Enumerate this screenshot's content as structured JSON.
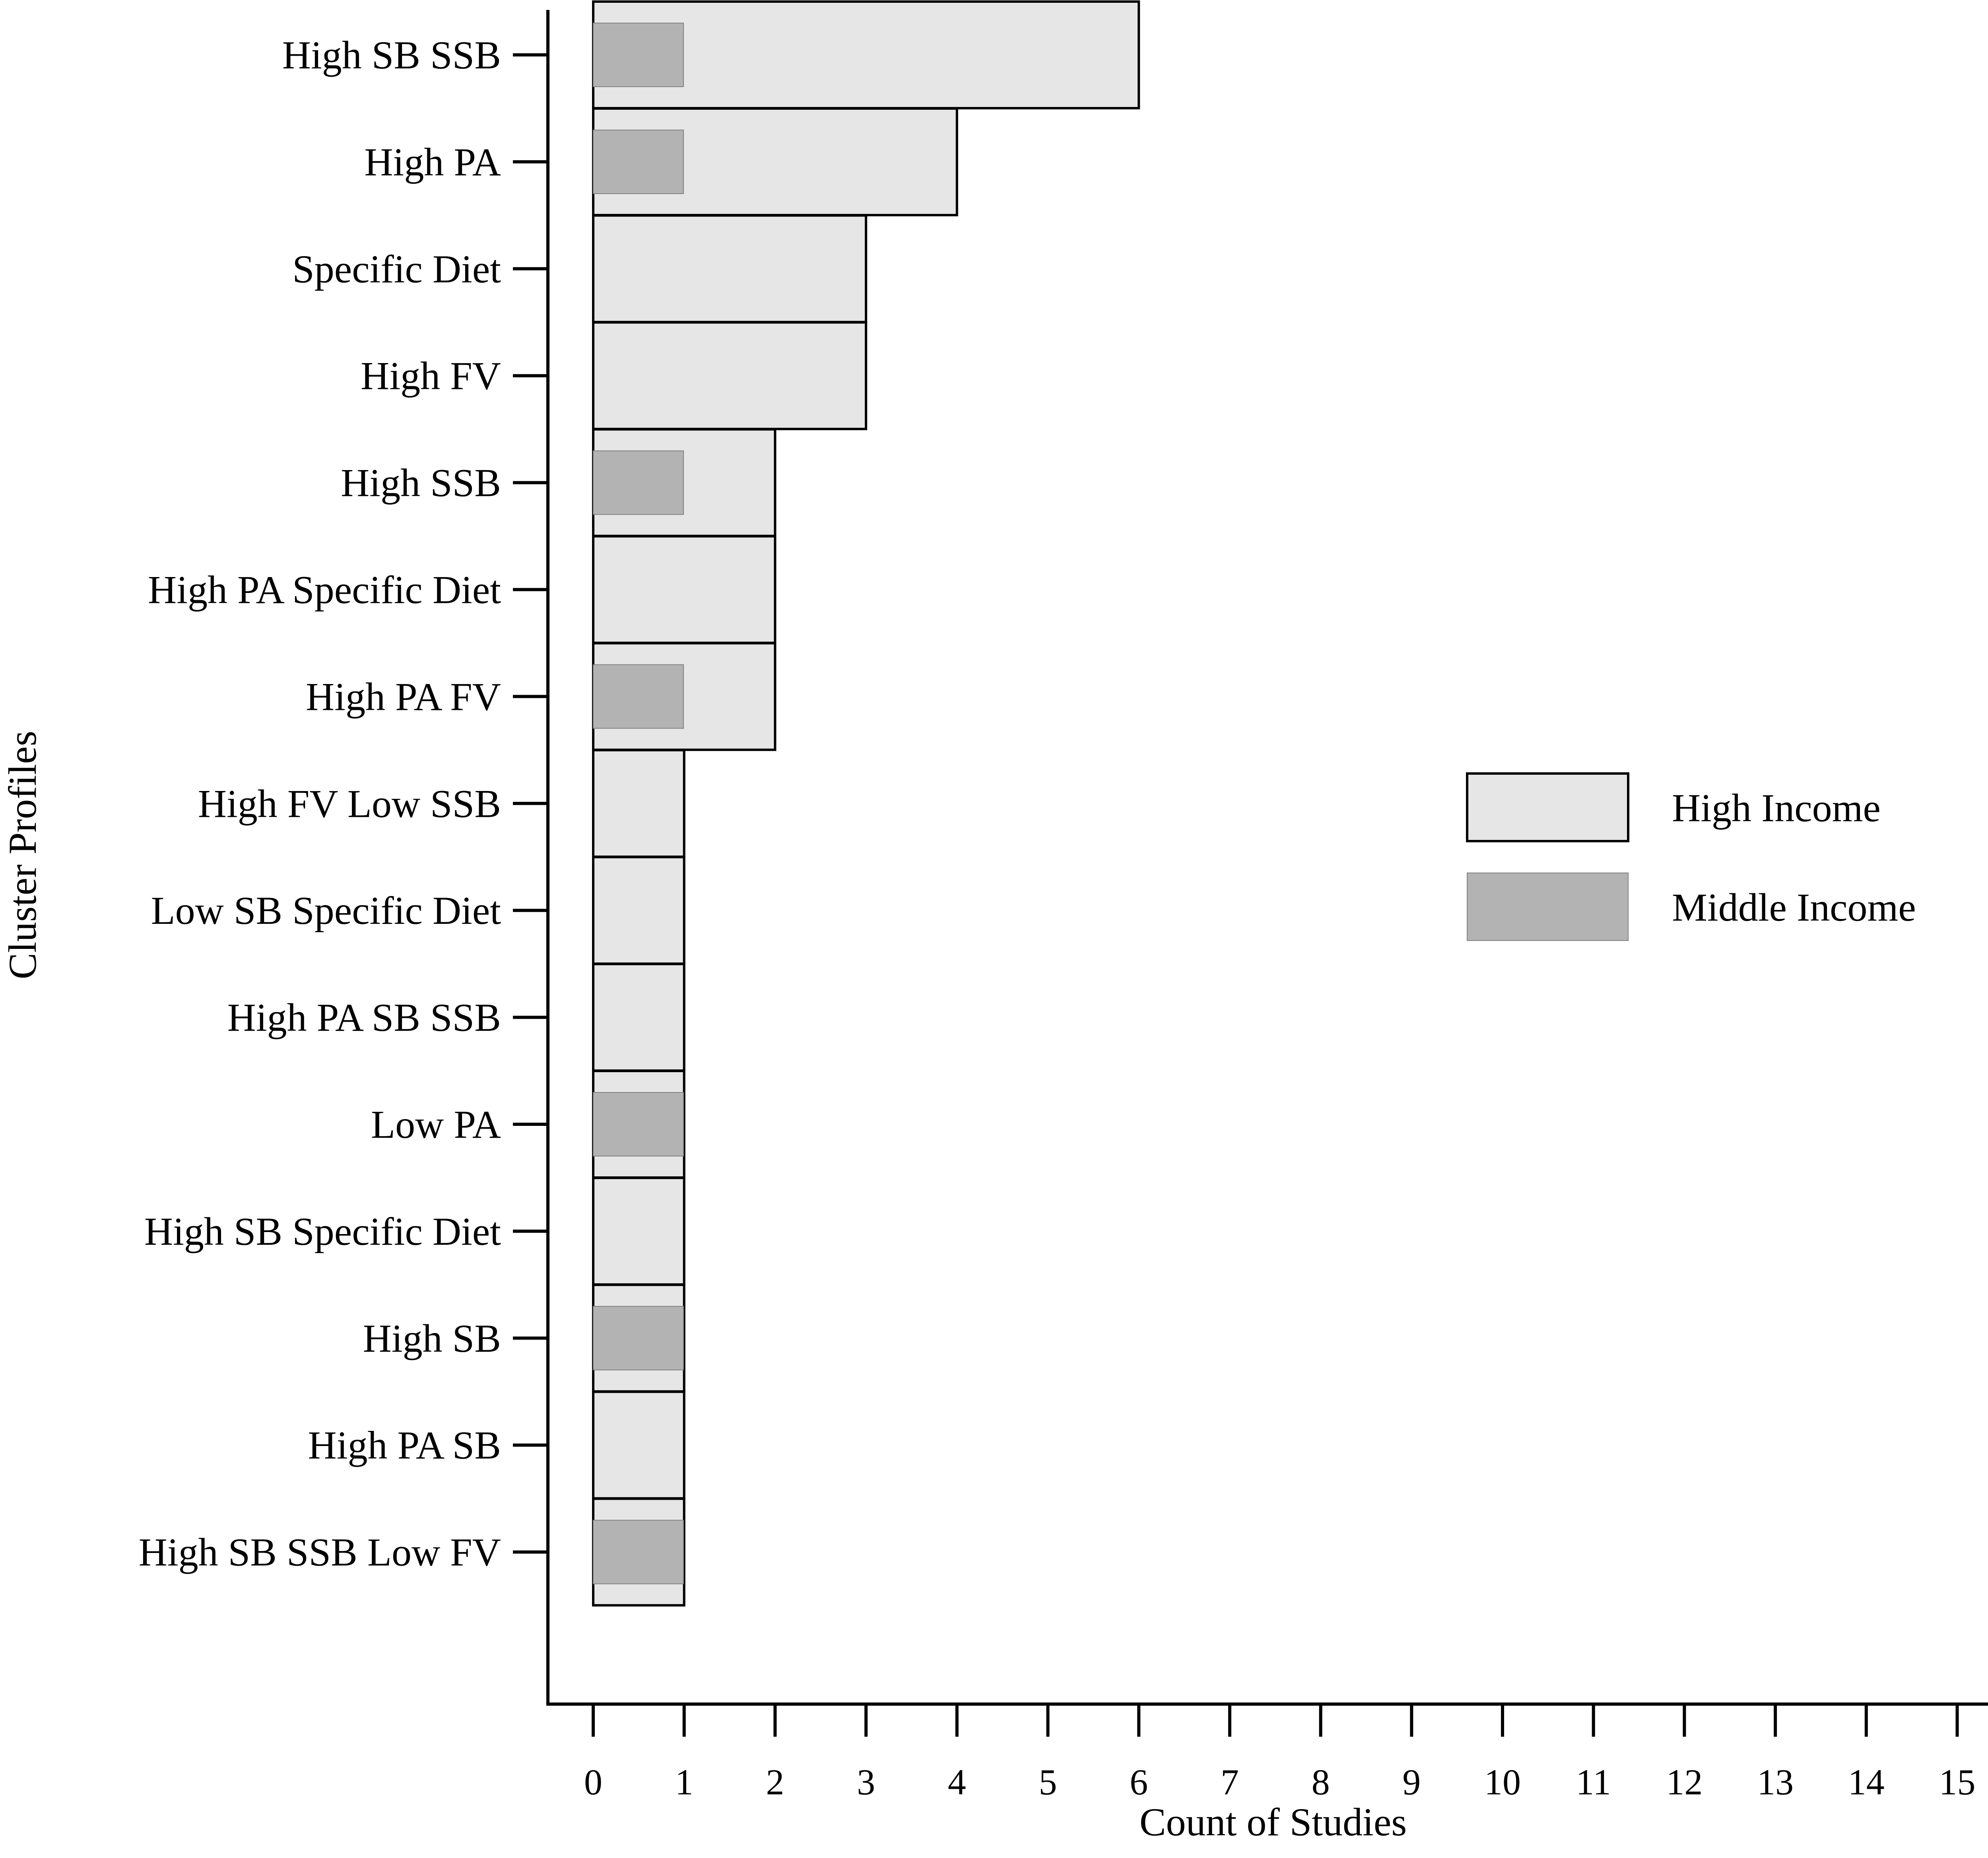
{
  "chart_data": {
    "type": "bar",
    "orientation": "horizontal",
    "categories": [
      "High SB SSB",
      "High PA",
      "Specific Diet",
      "High FV",
      "High SSB",
      "High PA Specific Diet",
      "High PA FV",
      "High FV Low SSB",
      "Low SB Specific Diet",
      "High PA SB SSB",
      "Low PA",
      "High SB Specific Diet",
      "High SB",
      "High PA SB",
      "High SB SSB Low FV"
    ],
    "series": [
      {
        "name": "High Income",
        "color": "#e6e6e6",
        "stroke": "#000000",
        "values": [
          6,
          4,
          3,
          3,
          2,
          2,
          2,
          1,
          1,
          1,
          1,
          1,
          1,
          1,
          1
        ]
      },
      {
        "name": "Middle Income",
        "color": "#b3b3b3",
        "stroke": "#808080",
        "values": [
          1,
          1,
          0,
          0,
          1,
          0,
          1,
          0,
          0,
          0,
          1,
          0,
          1,
          0,
          1
        ]
      }
    ],
    "xlabel": "Count of Studies",
    "ylabel": "Cluster Profiles",
    "xlim": [
      0,
      15
    ],
    "xticks": [
      "0",
      "1",
      "2",
      "3",
      "4",
      "5",
      "6",
      "7",
      "8",
      "9",
      "10",
      "11",
      "12",
      "13",
      "14",
      "15"
    ],
    "legend_position": "right",
    "grid": false
  }
}
